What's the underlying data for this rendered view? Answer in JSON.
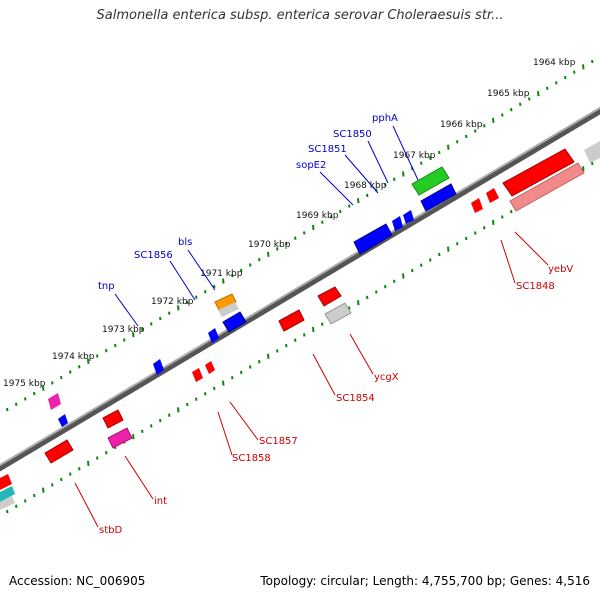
{
  "title": "Salmonella enterica subsp. enterica serovar Choleraesuis str...",
  "footer": {
    "accession": "Accession: NC_006905",
    "topology": "Topology: circular; Length: 4,755,700 bp; Genes: 4,516"
  },
  "colors": {
    "backbone": "#777777",
    "tick": "#0a8a0a",
    "forward_label": "#0000cc",
    "reverse_label": "#cc0000",
    "red": "#ff0000",
    "blue": "#0000ff",
    "green": "#22cc22",
    "orange": "#ff9900",
    "magenta": "#ee22aa",
    "pink": "#f28a8a",
    "gray": "#bdbdbd",
    "cyan": "#22b8b8"
  },
  "ticks": [
    "1964 kbp",
    "1965 kbp",
    "1966 kbp",
    "1967 kbp",
    "1968 kbp",
    "1969 kbp",
    "1970 kbp",
    "1971 kbp",
    "1972 kbp",
    "1973 kbp",
    "1974 kbp",
    "1975 kbp"
  ],
  "forward_labels": [
    "pphA",
    "SC1850",
    "SC1851",
    "sopE2",
    "bls",
    "SC1856",
    "tnp"
  ],
  "reverse_labels": [
    "yebV",
    "SC1848",
    "ycgX",
    "SC1854",
    "SC1857",
    "SC1858",
    "int",
    "stbD"
  ]
}
